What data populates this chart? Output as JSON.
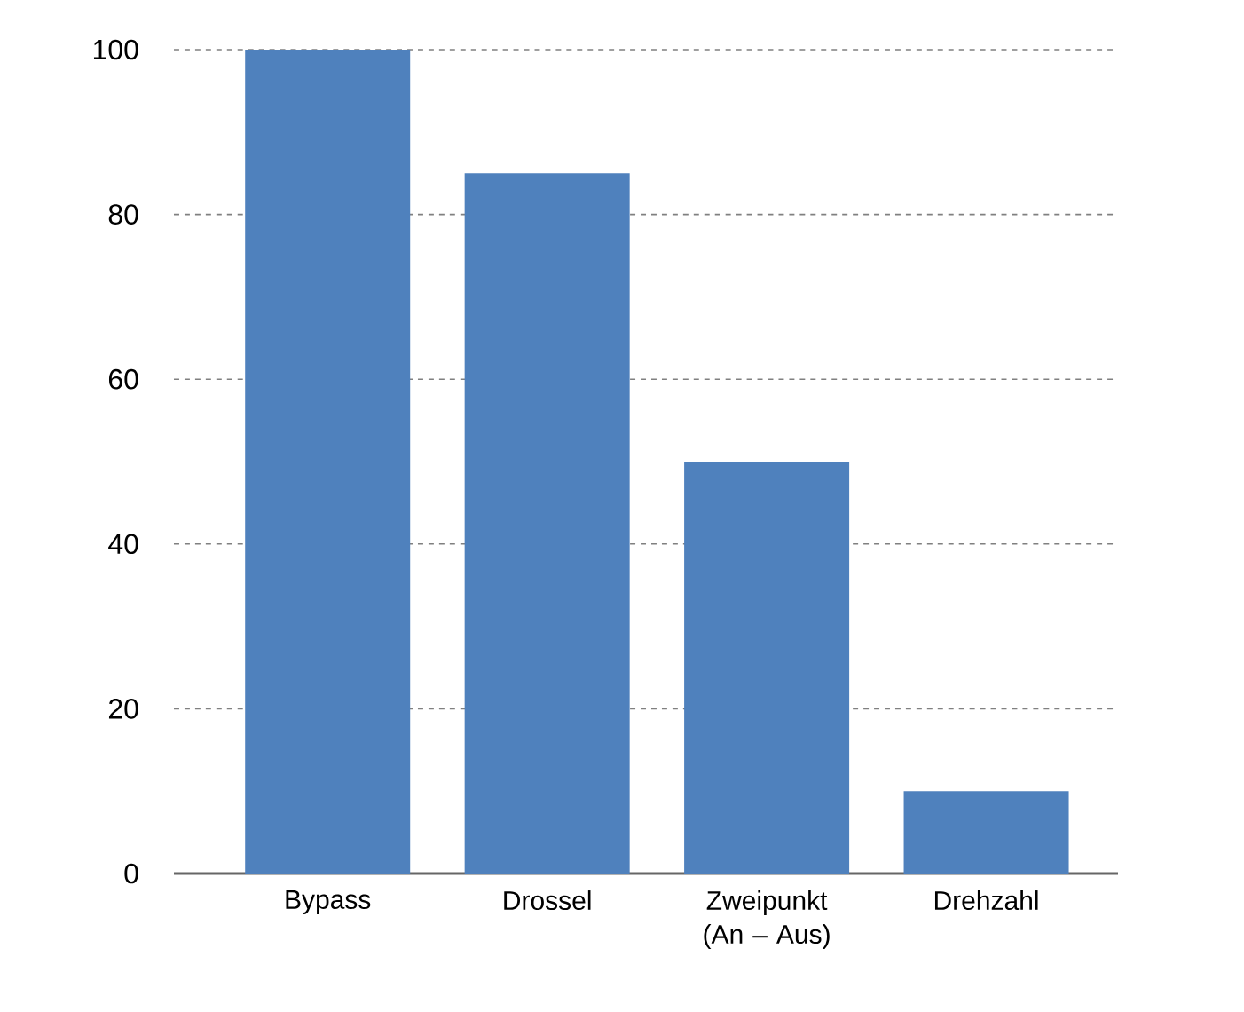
{
  "chart_data": {
    "type": "bar",
    "categories": [
      "Bypass",
      "Drossel",
      "Zweipunkt (An – Aus)",
      "Drehzahl"
    ],
    "values": [
      100,
      85,
      50,
      10
    ],
    "color": "#4f81bd",
    "ylim": [
      0,
      100
    ],
    "yticks": [
      0,
      20,
      40,
      60,
      80,
      100
    ],
    "grid": "y"
  }
}
